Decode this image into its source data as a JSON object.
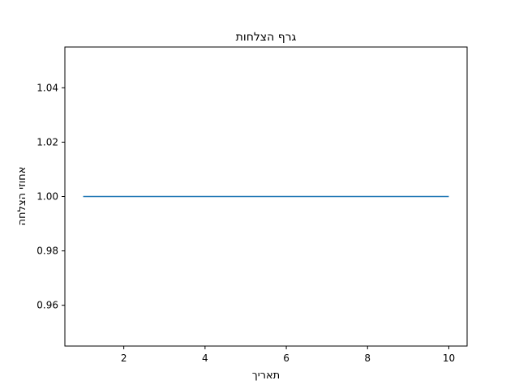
{
  "chart_data": {
    "type": "line",
    "title": "גרף הצלחות",
    "xlabel": "תאריך",
    "ylabel": "אחוזי הצלחה",
    "x": [
      1,
      2,
      3,
      4,
      5,
      6,
      7,
      8,
      9,
      10
    ],
    "series": [
      {
        "values": [
          1.0,
          1.0,
          1.0,
          1.0,
          1.0,
          1.0,
          1.0,
          1.0,
          1.0,
          1.0
        ],
        "color": "#1f77b4"
      }
    ],
    "xlim": [
      0.55,
      10.45
    ],
    "ylim": [
      0.945,
      1.055
    ],
    "xticks": [
      2,
      4,
      6,
      8,
      10
    ],
    "xtick_labels": [
      "2",
      "4",
      "6",
      "8",
      "10"
    ],
    "yticks": [
      0.96,
      0.98,
      1.0,
      1.02,
      1.04
    ],
    "ytick_labels": [
      "0.96",
      "0.98",
      "1.00",
      "1.02",
      "1.04"
    ],
    "grid": false,
    "legend": false
  }
}
